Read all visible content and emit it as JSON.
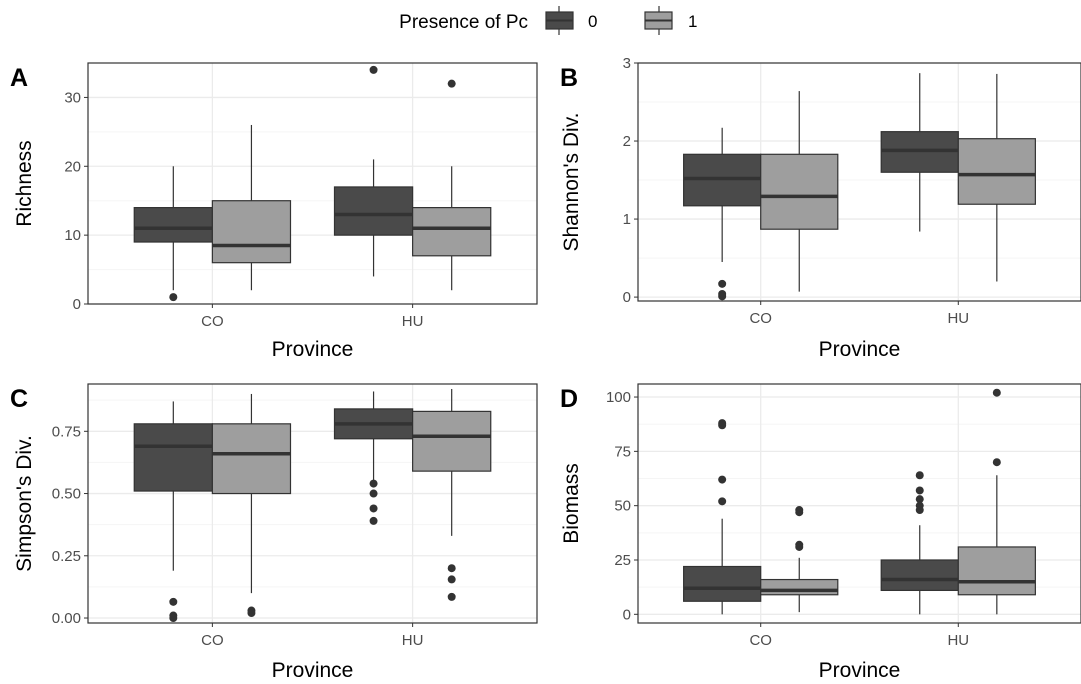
{
  "legend": {
    "title": "Presence of Pc",
    "entries": [
      {
        "label": "0",
        "color": "#4a4a4a"
      },
      {
        "label": "1",
        "color": "#9e9e9e"
      }
    ]
  },
  "colors": {
    "group0": "#4a4a4a",
    "group1": "#9e9e9e",
    "median": "#333333",
    "whisker": "#333333",
    "grid_major": "#ebebeb",
    "grid_minor": "#f5f5f5",
    "panel_border": "#333333"
  },
  "chart_data": [
    {
      "type": "boxplot",
      "tag": "A",
      "xlabel": "Province",
      "ylabel": "Richness",
      "categories": [
        "CO",
        "HU"
      ],
      "ylim": [
        0,
        35
      ],
      "yticks": [
        0,
        10,
        20,
        30
      ],
      "ytick_labels": [
        "0",
        "10",
        "20",
        "30"
      ],
      "grid": true,
      "boxes": [
        {
          "category": "CO",
          "group": "0",
          "min": 2,
          "q1": 9,
          "median": 11,
          "q3": 14,
          "max": 20,
          "outliers": [
            1
          ]
        },
        {
          "category": "CO",
          "group": "1",
          "min": 2,
          "q1": 6,
          "median": 8.5,
          "q3": 15,
          "max": 26,
          "outliers": []
        },
        {
          "category": "HU",
          "group": "0",
          "min": 4,
          "q1": 10,
          "median": 13,
          "q3": 17,
          "max": 21,
          "outliers": [
            34
          ]
        },
        {
          "category": "HU",
          "group": "1",
          "min": 2,
          "q1": 7,
          "median": 11,
          "q3": 14,
          "max": 20,
          "outliers": [
            32
          ]
        }
      ]
    },
    {
      "type": "boxplot",
      "tag": "B",
      "xlabel": "Province",
      "ylabel": "Shannon's Div.",
      "categories": [
        "CO",
        "HU"
      ],
      "ylim": [
        -0.05,
        3
      ],
      "yticks": [
        0,
        1,
        2,
        3
      ],
      "ytick_labels": [
        "0",
        "1",
        "2",
        "3"
      ],
      "grid": true,
      "boxes": [
        {
          "category": "CO",
          "group": "0",
          "min": 0.45,
          "q1": 1.17,
          "median": 1.52,
          "q3": 1.83,
          "max": 2.17,
          "outliers": [
            0.17,
            0.04,
            0.01
          ]
        },
        {
          "category": "CO",
          "group": "1",
          "min": 0.07,
          "q1": 0.87,
          "median": 1.29,
          "q3": 1.83,
          "max": 2.64,
          "outliers": []
        },
        {
          "category": "HU",
          "group": "0",
          "min": 0.84,
          "q1": 1.6,
          "median": 1.88,
          "q3": 2.12,
          "max": 2.87,
          "outliers": []
        },
        {
          "category": "HU",
          "group": "1",
          "min": 0.2,
          "q1": 1.19,
          "median": 1.57,
          "q3": 2.03,
          "max": 2.86,
          "outliers": []
        }
      ]
    },
    {
      "type": "boxplot",
      "tag": "C",
      "xlabel": "Province",
      "ylabel": "Simpson's Div.",
      "categories": [
        "CO",
        "HU"
      ],
      "ylim": [
        -0.02,
        0.94
      ],
      "yticks": [
        0,
        0.25,
        0.5,
        0.75
      ],
      "ytick_labels": [
        "0.00",
        "0.25",
        "0.50",
        "0.75"
      ],
      "grid": true,
      "boxes": [
        {
          "category": "CO",
          "group": "0",
          "min": 0.19,
          "q1": 0.51,
          "median": 0.69,
          "q3": 0.78,
          "max": 0.87,
          "outliers": [
            0.065,
            0.01,
            0.0
          ]
        },
        {
          "category": "CO",
          "group": "1",
          "min": 0.1,
          "q1": 0.5,
          "median": 0.66,
          "q3": 0.78,
          "max": 0.9,
          "outliers": [
            0.03,
            0.02
          ]
        },
        {
          "category": "HU",
          "group": "0",
          "min": 0.55,
          "q1": 0.72,
          "median": 0.78,
          "q3": 0.84,
          "max": 0.91,
          "outliers": [
            0.54,
            0.5,
            0.44,
            0.39
          ]
        },
        {
          "category": "HU",
          "group": "1",
          "min": 0.33,
          "q1": 0.59,
          "median": 0.73,
          "q3": 0.83,
          "max": 0.92,
          "outliers": [
            0.2,
            0.155,
            0.085
          ]
        }
      ]
    },
    {
      "type": "boxplot",
      "tag": "D",
      "xlabel": "Province",
      "ylabel": "Biomass",
      "categories": [
        "CO",
        "HU"
      ],
      "ylim": [
        -4,
        106
      ],
      "yticks": [
        0,
        25,
        50,
        75,
        100
      ],
      "ytick_labels": [
        "0",
        "25",
        "50",
        "75",
        "100"
      ],
      "grid": true,
      "boxes": [
        {
          "category": "CO",
          "group": "0",
          "min": 0,
          "q1": 6,
          "median": 12,
          "q3": 22,
          "max": 44,
          "outliers": [
            88,
            87,
            62,
            52
          ]
        },
        {
          "category": "CO",
          "group": "1",
          "min": 1,
          "q1": 9,
          "median": 11,
          "q3": 16,
          "max": 26,
          "outliers": [
            48,
            47,
            32,
            31
          ]
        },
        {
          "category": "HU",
          "group": "0",
          "min": 0,
          "q1": 11,
          "median": 16,
          "q3": 25,
          "max": 41,
          "outliers": [
            64,
            57,
            53,
            50,
            48
          ]
        },
        {
          "category": "HU",
          "group": "1",
          "min": 0,
          "q1": 9,
          "median": 15,
          "q3": 31,
          "max": 64,
          "outliers": [
            102,
            70
          ]
        }
      ]
    }
  ]
}
